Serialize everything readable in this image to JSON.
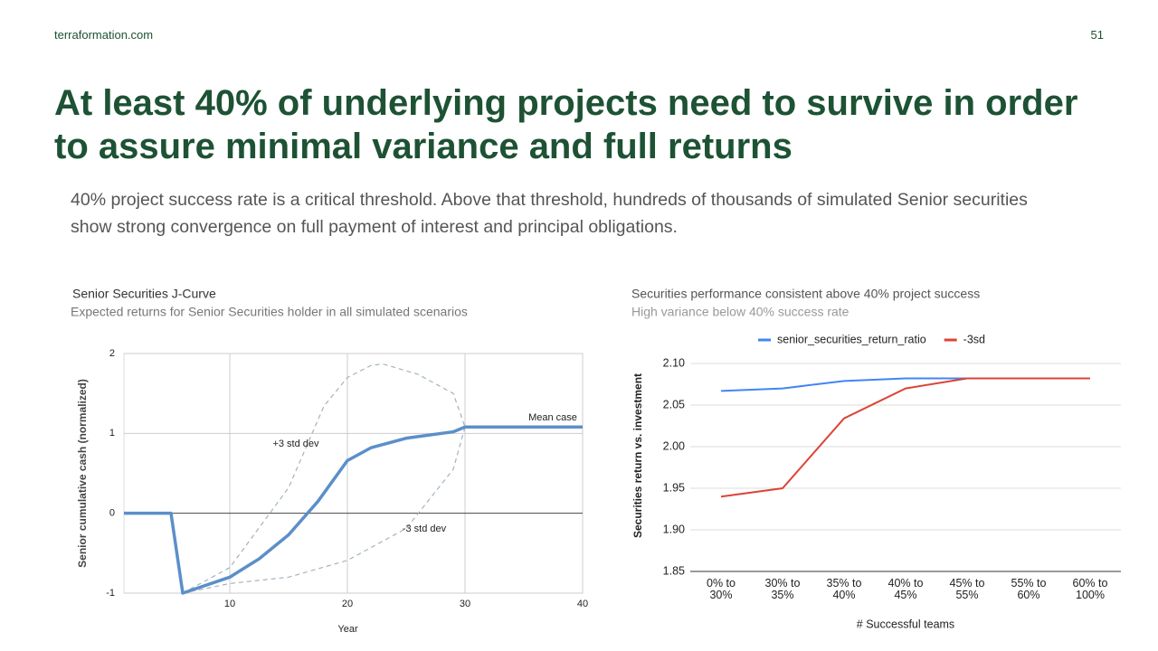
{
  "header": {
    "site": "terraformation.com",
    "page": "51",
    "title": "At least 40% of underlying projects need to survive in order to assure minimal variance and full returns",
    "subtitle": "40% project success rate is a critical threshold. Above that threshold, hundreds of thousands of simulated Senior securities show strong convergence on full payment of interest and principal obligations."
  },
  "chart_data": [
    {
      "type": "line",
      "title": "Senior Securities J-Curve",
      "subtitle": "Expected returns for Senior Securities holder in all simulated scenarios",
      "x_label": "Year",
      "y_label": "Senior cumulative cash (normalized)",
      "xlim": [
        1,
        40
      ],
      "xticks": [
        10,
        20,
        30,
        40
      ],
      "ylim": [
        -1,
        2
      ],
      "yticks": [
        -1,
        0,
        1,
        2
      ],
      "grid": true,
      "series": [
        {
          "name": "+3 std dev",
          "color": "#a3b3bf",
          "style": "dashed",
          "x": [
            6,
            10,
            15,
            18,
            20,
            22,
            23,
            26,
            29,
            30
          ],
          "values": [
            -1,
            -0.68,
            0.32,
            1.34,
            1.7,
            1.85,
            1.87,
            1.74,
            1.5,
            1.08
          ]
        },
        {
          "name": "-3 std dev",
          "color": "#a3b3bf",
          "style": "dashed",
          "x": [
            6,
            10,
            15,
            20,
            25,
            29,
            30
          ],
          "values": [
            -1,
            -0.88,
            -0.8,
            -0.59,
            -0.19,
            0.55,
            1.08
          ]
        },
        {
          "name": "Mean case",
          "color": "#5b8fc9",
          "style": "solid",
          "x": [
            1,
            5,
            6,
            10,
            12.5,
            15,
            17.5,
            20,
            22,
            25,
            29,
            30,
            40
          ],
          "values": [
            0,
            0,
            -1,
            -0.8,
            -0.57,
            -0.27,
            0.15,
            0.66,
            0.82,
            0.94,
            1.02,
            1.08,
            1.08
          ]
        }
      ]
    },
    {
      "type": "line",
      "title": "Securities performance consistent above 40% project success",
      "subtitle": "High variance below 40% success rate",
      "x_label": "# Successful teams",
      "y_label": "Securities return vs. investment",
      "categories": [
        "0% to\n30%",
        "30% to\n35%",
        "35% to\n40%",
        "40% to\n45%",
        "45% to\n55%",
        "55% to\n60%",
        "60% to\n100%"
      ],
      "ylim": [
        1.85,
        2.1
      ],
      "yticks": [
        1.85,
        {
          "value": 1.9,
          "label": "1.90"
        },
        1.95,
        {
          "value": 2.0,
          "label": "2.00"
        },
        2.05,
        {
          "value": 2.1,
          "label": "2.10"
        }
      ],
      "grid": true,
      "legend": "top",
      "series": [
        {
          "name": "senior_securities_return_ratio",
          "color": "#4285f4",
          "values": [
            2.067,
            2.07,
            2.079,
            2.082,
            2.082,
            2.082,
            2.082
          ]
        },
        {
          "name": "-3sd",
          "color": "#db4437",
          "values": [
            1.94,
            1.95,
            2.034,
            2.07,
            2.082,
            2.082,
            2.082
          ]
        }
      ]
    }
  ]
}
